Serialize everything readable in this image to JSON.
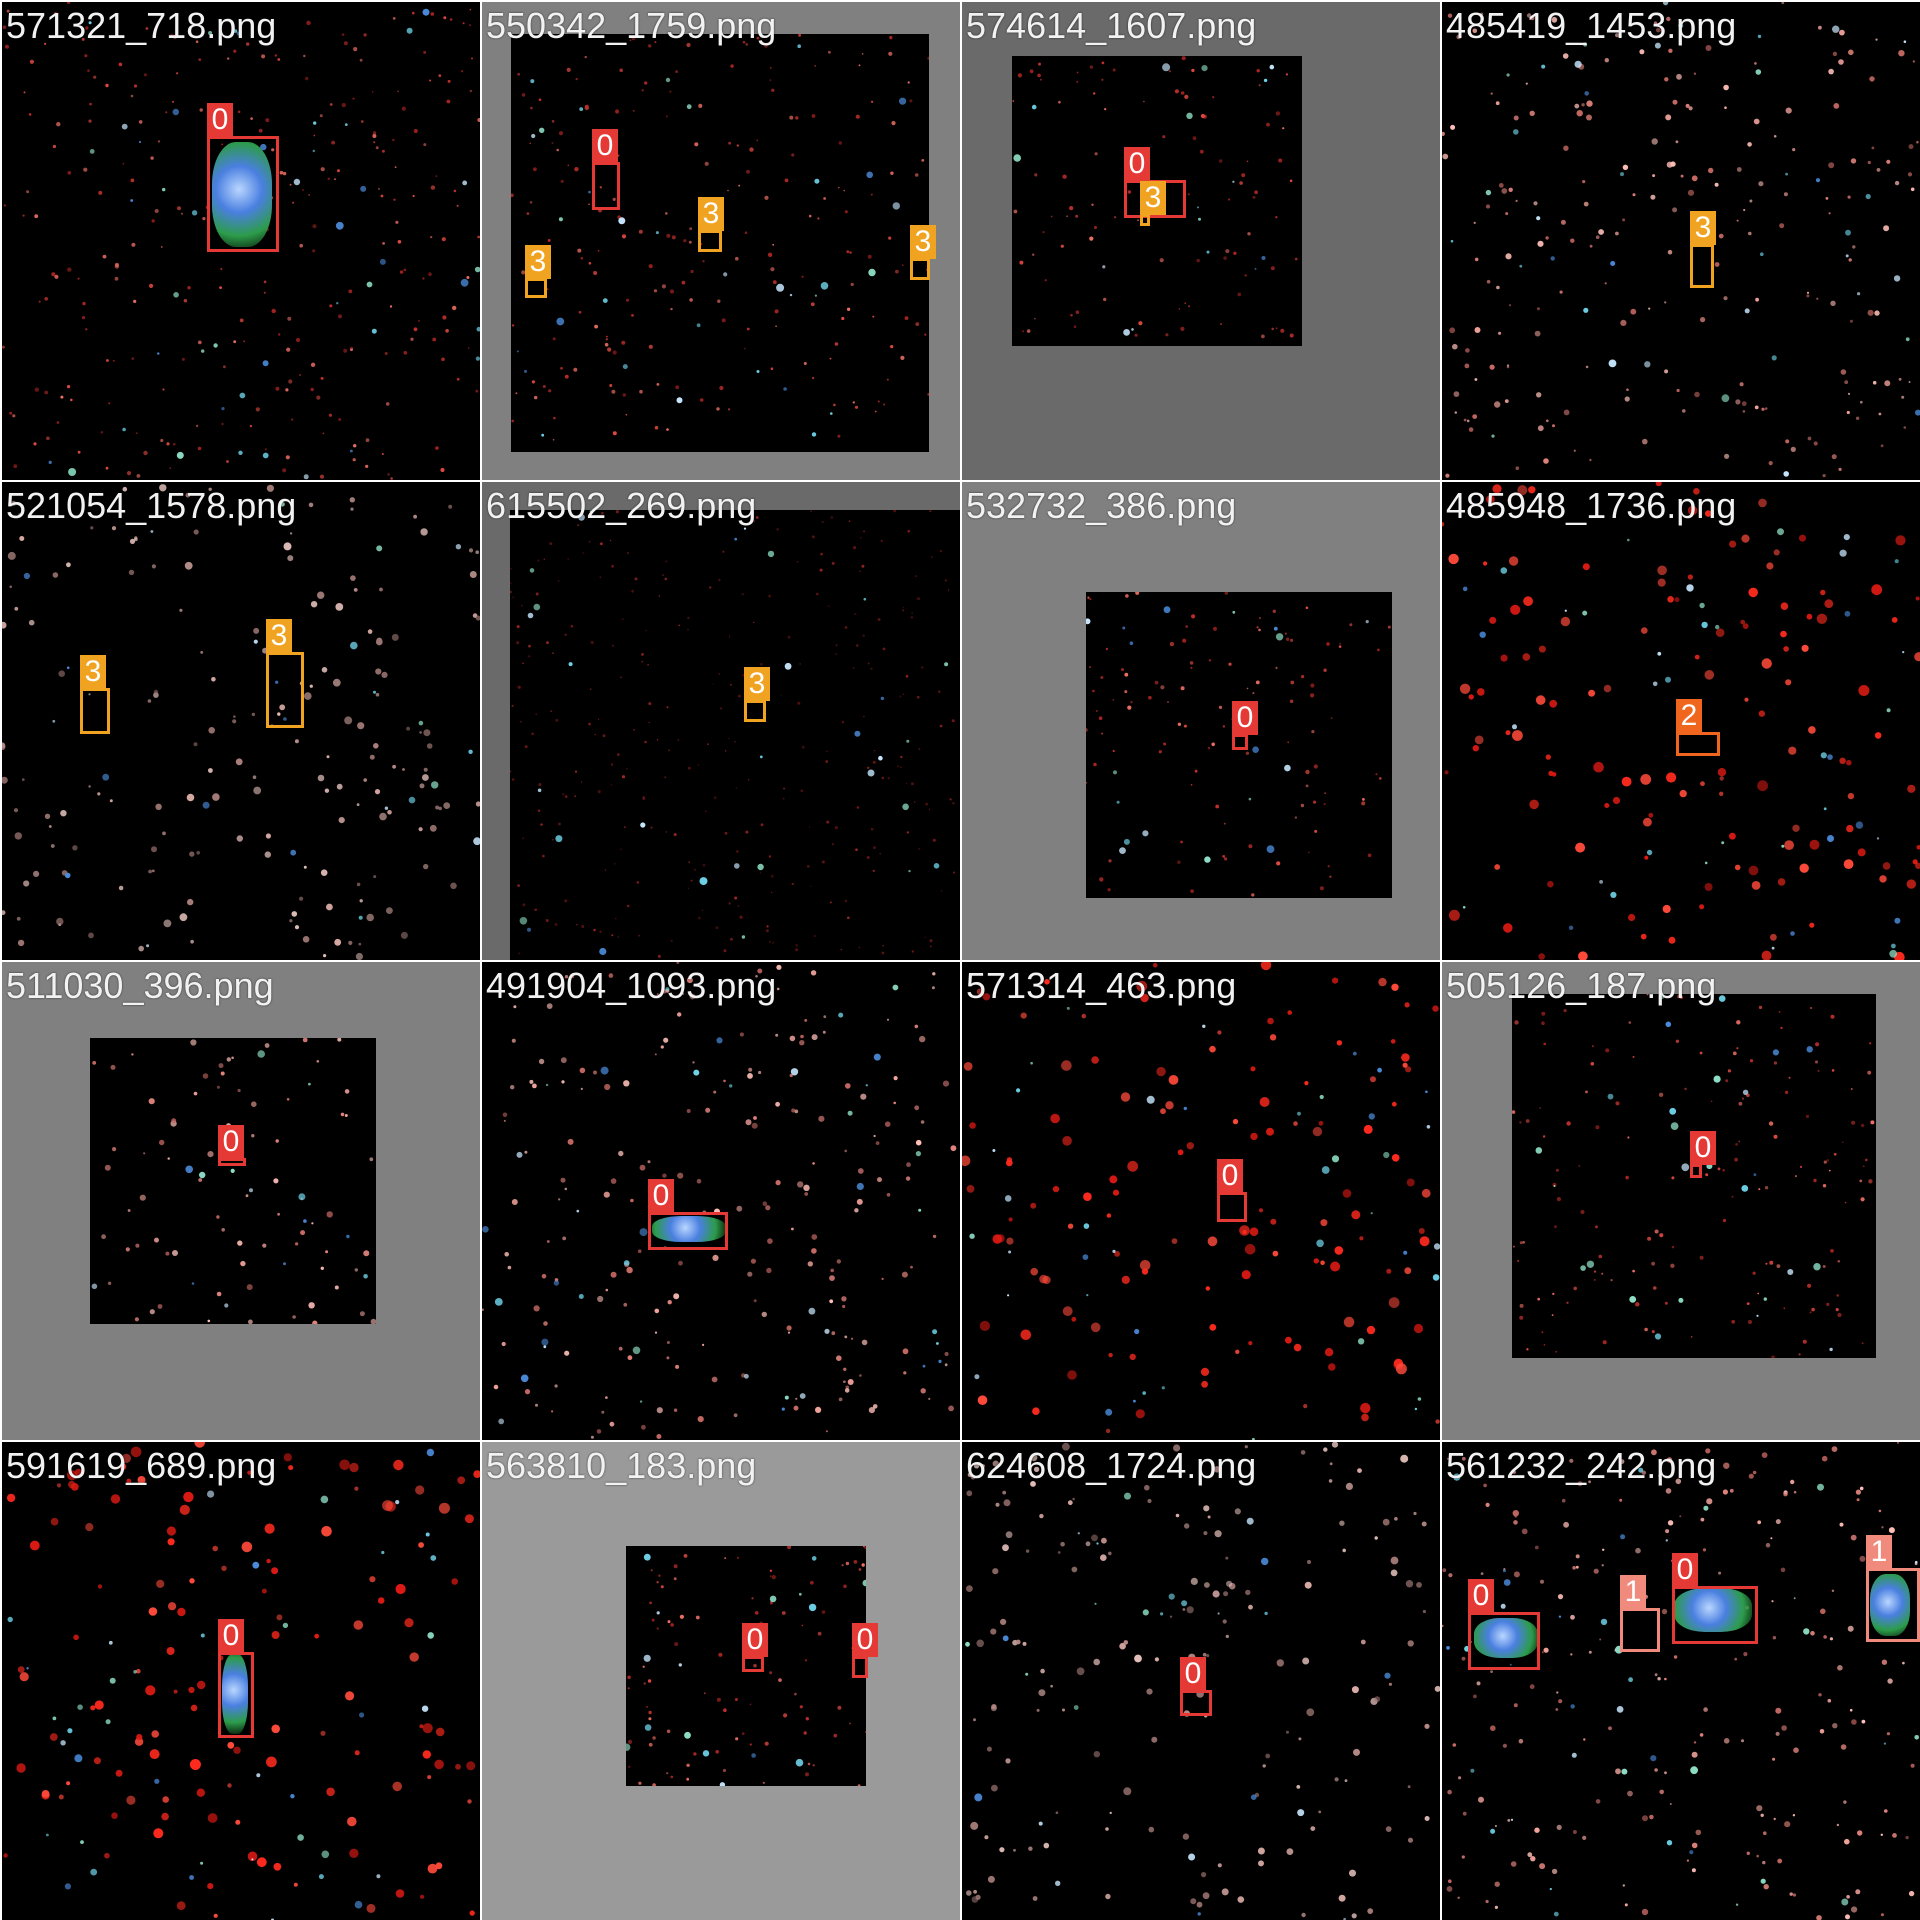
{
  "tiles": [
    {
      "filename": "571321_718.png",
      "detections": [
        {
          "label": "0"
        }
      ]
    },
    {
      "filename": "550342_1759.png",
      "detections": [
        {
          "label": "0"
        },
        {
          "label": "3"
        },
        {
          "label": "3"
        },
        {
          "label": "3"
        }
      ]
    },
    {
      "filename": "574614_1607.png",
      "detections": [
        {
          "label": "0"
        },
        {
          "label": "3"
        }
      ]
    },
    {
      "filename": "485419_1453.png",
      "detections": [
        {
          "label": "3"
        }
      ]
    },
    {
      "filename": "521054_1578.png",
      "detections": [
        {
          "label": "3"
        },
        {
          "label": "3"
        }
      ]
    },
    {
      "filename": "615502_269.png",
      "detections": [
        {
          "label": "3"
        }
      ]
    },
    {
      "filename": "532732_386.png",
      "detections": [
        {
          "label": "0"
        }
      ]
    },
    {
      "filename": "485948_1736.png",
      "detections": [
        {
          "label": "2"
        }
      ]
    },
    {
      "filename": "511030_396.png",
      "detections": [
        {
          "label": "0"
        }
      ]
    },
    {
      "filename": "491904_1093.png",
      "detections": [
        {
          "label": "0"
        }
      ]
    },
    {
      "filename": "571314_463.png",
      "detections": [
        {
          "label": "0"
        }
      ]
    },
    {
      "filename": "505126_187.png",
      "detections": [
        {
          "label": "0"
        }
      ]
    },
    {
      "filename": "591619_689.png",
      "detections": [
        {
          "label": "0"
        }
      ]
    },
    {
      "filename": "563810_183.png",
      "detections": [
        {
          "label": "0"
        },
        {
          "label": "0"
        }
      ]
    },
    {
      "filename": "624608_1724.png",
      "detections": [
        {
          "label": "0"
        }
      ]
    },
    {
      "filename": "561232_242.png",
      "detections": [
        {
          "label": "0"
        },
        {
          "label": "1"
        },
        {
          "label": "0"
        },
        {
          "label": "1"
        }
      ]
    }
  ],
  "class_colors": {
    "0": "#e53935",
    "1": "#f08a7c",
    "2": "#f0661e",
    "3": "#f0a321"
  }
}
